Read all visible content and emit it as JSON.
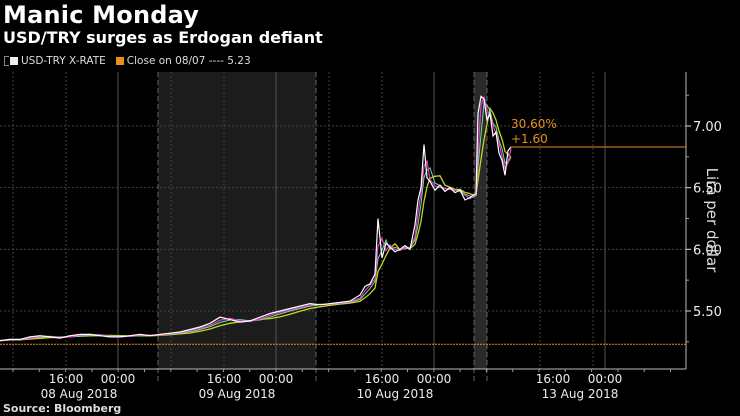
{
  "header": {
    "title": "Manic Monday",
    "subtitle": "USD/TRY surges as Erdogan defiant"
  },
  "legend": {
    "series_label": "USD-TRY X-RATE",
    "series_color": "#ffffff",
    "reference_label": "Close on 08/07 ---- 5.23",
    "reference_color": "#e8901e"
  },
  "annotation": {
    "pct_change": "30.60%",
    "abs_change": "+1.60"
  },
  "footer": {
    "source": "Source: Bloomberg"
  },
  "axis": {
    "y_label": "Lira per dollar",
    "y_ticks": [
      "7.00",
      "6.50",
      "6.00",
      "5.50"
    ],
    "x_time_ticks": [
      "16:00",
      "00:00",
      "16:00",
      "00:00",
      "16:00",
      "00:00",
      "16:00",
      "00:00"
    ],
    "x_date_labels": [
      "08 Aug 2018",
      "09 Aug 2018",
      "10 Aug 2018",
      "13 Aug 2018"
    ]
  },
  "chart_data": {
    "type": "line",
    "title": "Manic Monday",
    "subtitle": "USD/TRY surges as Erdogan defiant",
    "xlabel": "",
    "ylabel": "Lira per dollar",
    "ylim": [
      5.02,
      7.44
    ],
    "y_ticks": [
      5.5,
      6.0,
      6.5,
      7.0
    ],
    "grid": true,
    "legend_position": "top-left",
    "x_day_labels": [
      "08 Aug 2018",
      "09 Aug 2018",
      "10 Aug 2018",
      "13 Aug 2018"
    ],
    "reference_line": {
      "label": "Close on 08/07",
      "value": 5.23
    },
    "last_value": 6.83,
    "change_pct": "30.60%",
    "change_abs": "+1.60",
    "series": [
      {
        "name": "USD-TRY X-RATE",
        "x": [
          0,
          10,
          20,
          30,
          40,
          50,
          60,
          70,
          80,
          90,
          100,
          110,
          120,
          130,
          140,
          150,
          160,
          170,
          180,
          190,
          200,
          210,
          220,
          230,
          240,
          250,
          260,
          270,
          280,
          290,
          300,
          310,
          320,
          330,
          340,
          350,
          360,
          365,
          370,
          375,
          378,
          382,
          386,
          390,
          395,
          400,
          405,
          410,
          415,
          418,
          421,
          424,
          427,
          430,
          435,
          440,
          445,
          450,
          455,
          460,
          465,
          470,
          473,
          476,
          478,
          481,
          484,
          487,
          490,
          493,
          496,
          499,
          502,
          505,
          508,
          511
        ],
        "values": [
          5.26,
          5.27,
          5.27,
          5.29,
          5.3,
          5.29,
          5.28,
          5.3,
          5.31,
          5.31,
          5.3,
          5.29,
          5.29,
          5.3,
          5.31,
          5.3,
          5.31,
          5.32,
          5.33,
          5.35,
          5.37,
          5.4,
          5.45,
          5.43,
          5.41,
          5.42,
          5.45,
          5.48,
          5.5,
          5.52,
          5.54,
          5.56,
          5.55,
          5.56,
          5.57,
          5.58,
          5.63,
          5.7,
          5.72,
          5.8,
          6.25,
          5.93,
          6.05,
          6.02,
          5.98,
          6.0,
          6.03,
          6.0,
          6.2,
          6.4,
          6.5,
          6.85,
          6.58,
          6.55,
          6.48,
          6.52,
          6.47,
          6.5,
          6.46,
          6.48,
          6.4,
          6.42,
          6.44,
          6.45,
          7.1,
          7.24,
          7.22,
          7.05,
          7.1,
          6.92,
          6.95,
          6.78,
          6.72,
          6.6,
          6.8,
          6.83
        ]
      }
    ]
  }
}
